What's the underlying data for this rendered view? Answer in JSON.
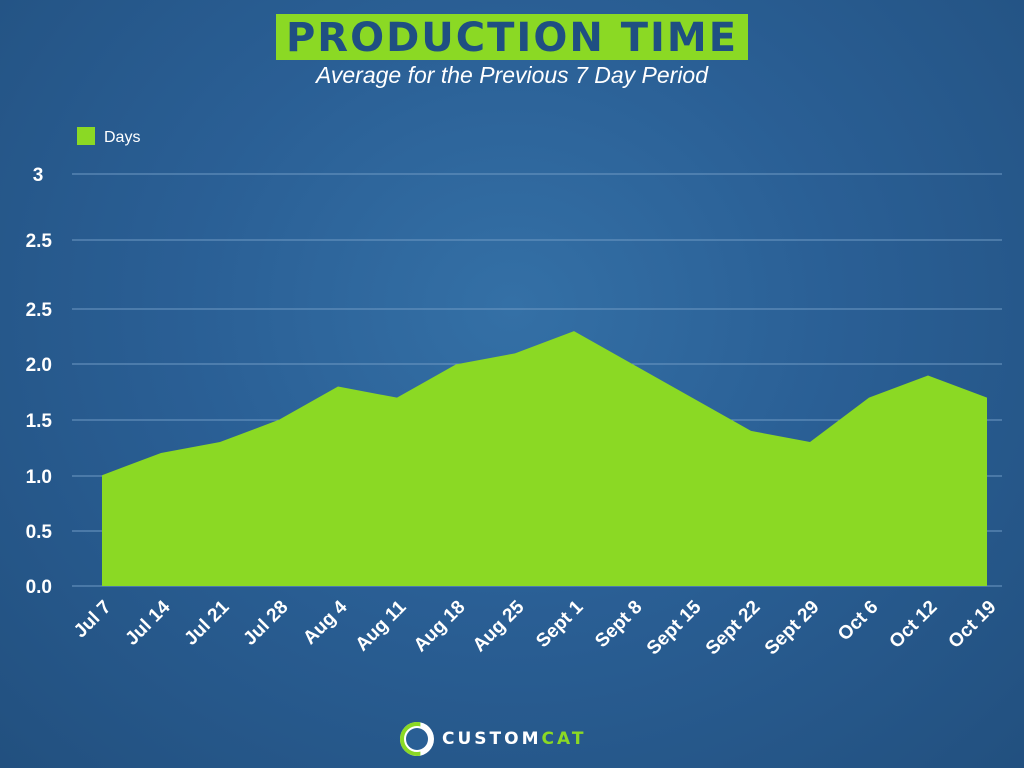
{
  "header": {
    "title": "PRODUCTION TIME",
    "subtitle": "Average for the Previous 7 Day Period"
  },
  "logo": {
    "word1": "CUSTOM",
    "word2": "CAT"
  },
  "colors": {
    "area": "#8bd924",
    "grid": "#6f9ac4",
    "text": "#ffffff"
  },
  "chart_data": {
    "type": "area",
    "title": "PRODUCTION TIME",
    "subtitle": "Average for the Previous 7 Day Period",
    "legend": {
      "position": "top-left",
      "entries": [
        "Days"
      ]
    },
    "grid": true,
    "y_tick_labels": [
      "0.0",
      "0.5",
      "1.0",
      "1.5",
      "2.0",
      "2.5",
      "2.5",
      "3"
    ],
    "ylim": [
      0,
      3.5
    ],
    "categories": [
      "Jul 7",
      "Jul 14",
      "Jul 21",
      "Jul 28",
      "Aug 4",
      "Aug 11",
      "Aug 18",
      "Aug 25",
      "Sept 1",
      "Sept 8",
      "Sept 15",
      "Sept 22",
      "Sept 29",
      "Oct 6",
      "Oct 12",
      "Oct 19"
    ],
    "series": [
      {
        "name": "Days",
        "values": [
          1.0,
          1.2,
          1.3,
          1.5,
          1.8,
          1.7,
          2.0,
          2.1,
          2.3,
          2.0,
          1.7,
          1.4,
          1.3,
          1.7,
          1.9,
          1.7
        ]
      }
    ]
  }
}
